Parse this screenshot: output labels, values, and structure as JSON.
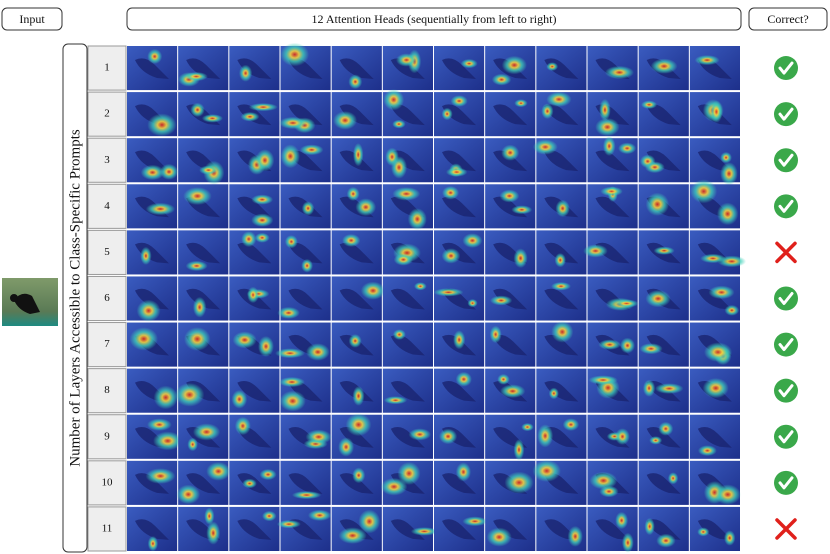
{
  "header": {
    "input": "Input",
    "heads": "12 Attention Heads (sequentially from left to right)",
    "correct": "Correct?"
  },
  "y_label": "Number of Layers Accessible to Class-Specific Prompts",
  "rows": [
    {
      "label": 1,
      "correct": true
    },
    {
      "label": 2,
      "correct": true
    },
    {
      "label": 3,
      "correct": true
    },
    {
      "label": 4,
      "correct": true
    },
    {
      "label": 5,
      "correct": false
    },
    {
      "label": 6,
      "correct": true
    },
    {
      "label": 7,
      "correct": true
    },
    {
      "label": 8,
      "correct": true
    },
    {
      "label": 9,
      "correct": true
    },
    {
      "label": 10,
      "correct": true
    },
    {
      "label": 11,
      "correct": false
    }
  ]
}
